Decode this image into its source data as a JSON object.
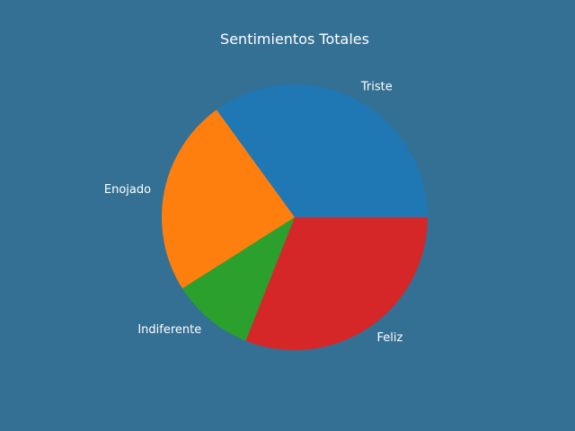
{
  "chart_data": {
    "type": "pie",
    "title": "Sentimientos Totales",
    "categories": [
      "Triste",
      "Enojado",
      "Indiferente",
      "Feliz"
    ],
    "values": [
      35,
      24,
      10,
      31
    ],
    "colors": [
      "#1f77b4",
      "#ff7f0e",
      "#2ca02c",
      "#d62728"
    ],
    "start_angle": 0,
    "direction": "counterclockwise",
    "legend": "none"
  },
  "colors": {
    "background": "#347094",
    "text": "#ffffff"
  }
}
